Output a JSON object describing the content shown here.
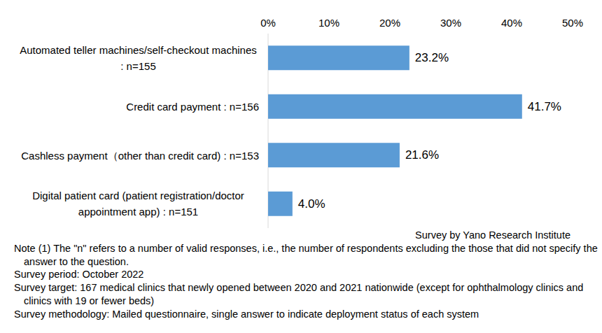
{
  "chart_data": {
    "type": "bar",
    "orientation": "horizontal",
    "categories": [
      "Automated teller machines/self-checkout machines : n=155",
      "Credit card payment : n=156",
      "Cashless payment（other than credit card) : n=153",
      "Digital patient card (patient registration/doctor appointment app) : n=151"
    ],
    "values": [
      23.2,
      41.7,
      21.6,
      4.0
    ],
    "value_labels": [
      "23.2%",
      "41.7%",
      "21.6%",
      "4.0%"
    ],
    "color": "#5b9bd5",
    "xlim": [
      0,
      50
    ],
    "xticks": [
      {
        "value": 0,
        "label": "0%"
      },
      {
        "value": 10,
        "label": "10%"
      },
      {
        "value": 20,
        "label": "20%"
      },
      {
        "value": 30,
        "label": "30%"
      },
      {
        "value": 40,
        "label": "40%"
      },
      {
        "value": 50,
        "label": "50%"
      }
    ],
    "grid": false,
    "data_labels": true,
    "annotations": [
      "Survey by Yano Research Institute",
      "Note (1)  The \"n\" refers to a number of valid responses, i.e., the number of respondents excluding the those that did not specify the answer to the question.",
      "Survey period: October 2022",
      "Survey target: 167 medical clinics that newly opened between 2020 and 2021 nationwide (except for ophthalmology clinics and clinics with 19 or fewer beds)",
      "Survey methodology: Mailed questionnaire, single answer to indicate deployment status of each system"
    ]
  }
}
